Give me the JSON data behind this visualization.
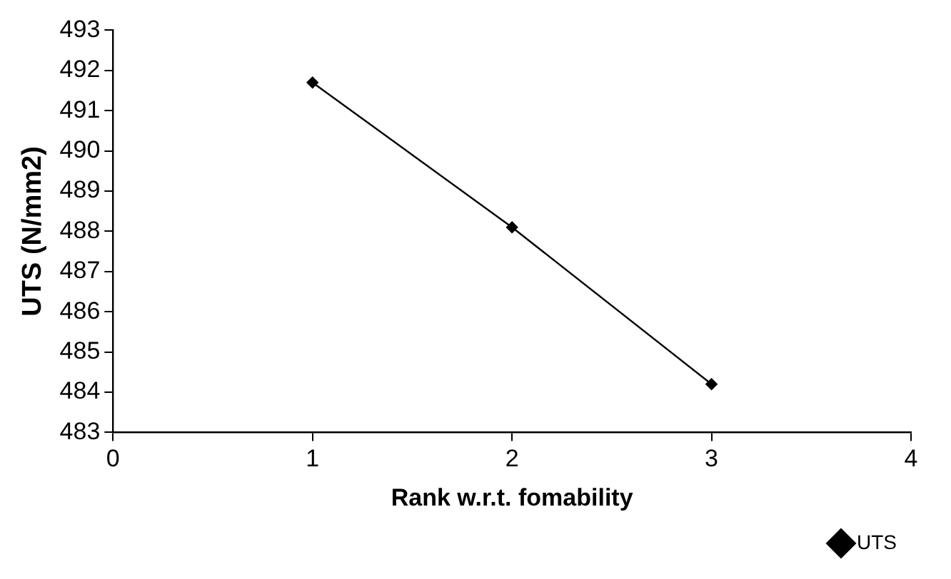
{
  "chart_data": {
    "type": "line",
    "xlabel": "Rank w.r.t. fomability",
    "ylabel": "UTS (N/mm2)",
    "x": [
      1,
      2,
      3
    ],
    "series": [
      {
        "name": "UTS",
        "color": "#000000",
        "values": [
          491.7,
          488.1,
          484.2
        ]
      }
    ],
    "xlim": [
      0,
      4
    ],
    "xticks": [
      0,
      1,
      2,
      3,
      4
    ],
    "ylim": [
      483,
      493
    ],
    "yticks": [
      483,
      484,
      485,
      486,
      487,
      488,
      489,
      490,
      491,
      492,
      493
    ],
    "grid": false,
    "legend": "bottom right",
    "marker": "diamond",
    "line_style": "solid"
  }
}
